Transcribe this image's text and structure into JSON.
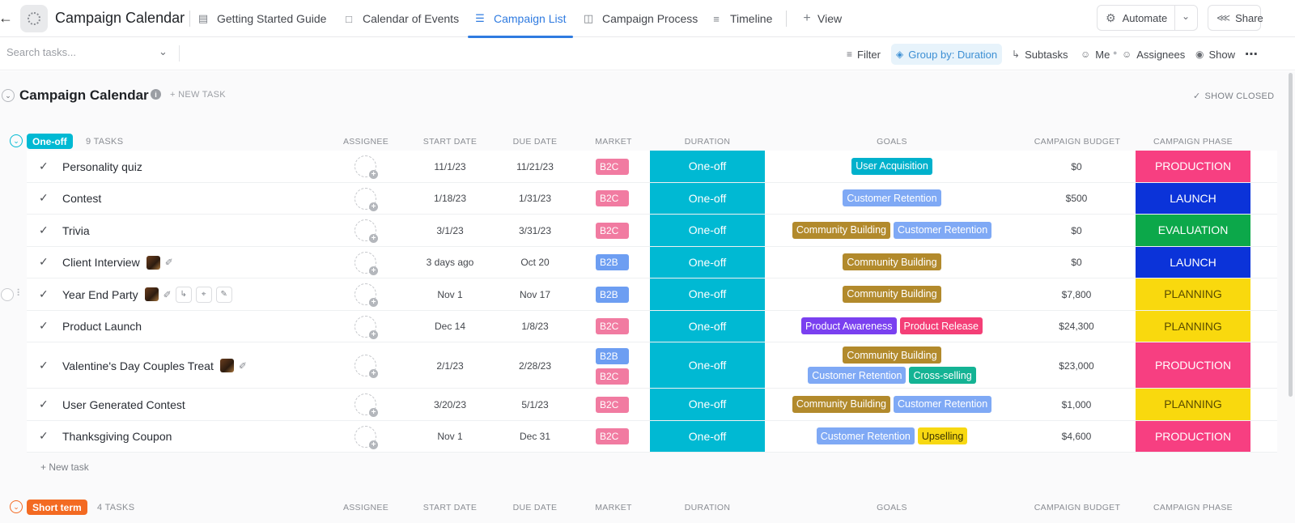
{
  "header": {
    "title": "Campaign Calendar",
    "tabs": [
      {
        "label": "Getting Started Guide",
        "icon": "doc-icon"
      },
      {
        "label": "Calendar of Events",
        "icon": "calendar-icon"
      },
      {
        "label": "Campaign List",
        "icon": "list-icon",
        "active": true
      },
      {
        "label": "Campaign Process",
        "icon": "board-icon"
      },
      {
        "label": "Timeline",
        "icon": "timeline-icon"
      }
    ],
    "add_view_label": "View",
    "automate_label": "Automate",
    "share_label": "Share"
  },
  "toolbar": {
    "search_placeholder": "Search tasks...",
    "filter_label": "Filter",
    "group_label": "Group by: Duration",
    "subtasks_label": "Subtasks",
    "me_label": "Me",
    "assignees_label": "Assignees",
    "show_label": "Show"
  },
  "list": {
    "title": "Campaign Calendar",
    "new_task_label": "+ NEW TASK",
    "show_closed_label": "SHOW CLOSED",
    "new_task_bottom": "+ New task"
  },
  "columns": {
    "assignee": "ASSIGNEE",
    "start_date": "START DATE",
    "due_date": "DUE DATE",
    "market": "MARKET",
    "duration": "DURATION",
    "goals": "GOALS",
    "budget": "CAMPAIGN BUDGET",
    "phase": "CAMPAIGN PHASE"
  },
  "colors": {
    "B2C": "#f17ba1",
    "B2B": "#6d9ef2",
    "duration": "#00b9d3",
    "User Acquisition": "#00b1cc",
    "Customer Retention": "#7fa9f5",
    "Community Building": "#b28a2c",
    "Product Awareness": "#7a40f0",
    "Product Release": "#f43f77",
    "Cross-selling": "#14b394",
    "Upselling": "#f7d812",
    "PRODUCTION": "#f73f81",
    "LAUNCH": "#0b33d9",
    "EVALUATION": "#0ca84a",
    "PLANNING": "#f9d90e"
  },
  "groups": [
    {
      "label": "One-off",
      "count": "9 TASKS",
      "color": "#00b9d3",
      "tasks": [
        {
          "name": "Personality quiz",
          "start": "11/1/23",
          "due": "11/21/23",
          "market": [
            "B2C"
          ],
          "duration": "One-off",
          "goals": [
            "User Acquisition"
          ],
          "budget": "$0",
          "phase": "PRODUCTION"
        },
        {
          "name": "Contest",
          "start": "1/18/23",
          "due": "1/31/23",
          "market": [
            "B2C"
          ],
          "duration": "One-off",
          "goals": [
            "Customer Retention"
          ],
          "budget": "$500",
          "phase": "LAUNCH"
        },
        {
          "name": "Trivia",
          "start": "3/1/23",
          "due": "3/31/23",
          "market": [
            "B2C"
          ],
          "duration": "One-off",
          "goals": [
            "Community Building",
            "Customer Retention"
          ],
          "budget": "$0",
          "phase": "EVALUATION"
        },
        {
          "name": "Client Interview",
          "start": "3 days ago",
          "due": "Oct 20",
          "market": [
            "B2B"
          ],
          "duration": "One-off",
          "goals": [
            "Community Building"
          ],
          "budget": "$0",
          "phase": "LAUNCH",
          "thumb": true,
          "clip": true
        },
        {
          "name": "Year End Party",
          "start": "Nov 1",
          "due": "Nov 17",
          "market": [
            "B2B"
          ],
          "duration": "One-off",
          "goals": [
            "Community Building"
          ],
          "budget": "$7,800",
          "phase": "PLANNING",
          "thumb": true,
          "clip": true,
          "hover": true
        },
        {
          "name": "Product Launch",
          "start": "Dec 14",
          "due": "1/8/23",
          "market": [
            "B2C"
          ],
          "duration": "One-off",
          "goals": [
            "Product Awareness",
            "Product Release"
          ],
          "budget": "$24,300",
          "phase": "PLANNING"
        },
        {
          "name": "Valentine's Day Couples Treat",
          "start": "2/1/23",
          "due": "2/28/23",
          "market": [
            "B2B",
            "B2C"
          ],
          "duration": "One-off",
          "goals": [
            "Community Building",
            "Customer Retention",
            "Cross-selling"
          ],
          "budget": "$23,000",
          "phase": "PRODUCTION",
          "thumb": true,
          "clip": true,
          "tall": true
        },
        {
          "name": "User Generated Contest",
          "start": "3/20/23",
          "due": "5/1/23",
          "market": [
            "B2C"
          ],
          "duration": "One-off",
          "goals": [
            "Community Building",
            "Customer Retention"
          ],
          "budget": "$1,000",
          "phase": "PLANNING"
        },
        {
          "name": "Thanksgiving Coupon",
          "start": "Nov 1",
          "due": "Dec 31",
          "market": [
            "B2C"
          ],
          "duration": "One-off",
          "goals": [
            "Customer Retention",
            "Upselling"
          ],
          "budget": "$4,600",
          "phase": "PRODUCTION"
        }
      ]
    },
    {
      "label": "Short term",
      "count": "4 TASKS",
      "color": "#f36a22",
      "tasks": []
    }
  ]
}
